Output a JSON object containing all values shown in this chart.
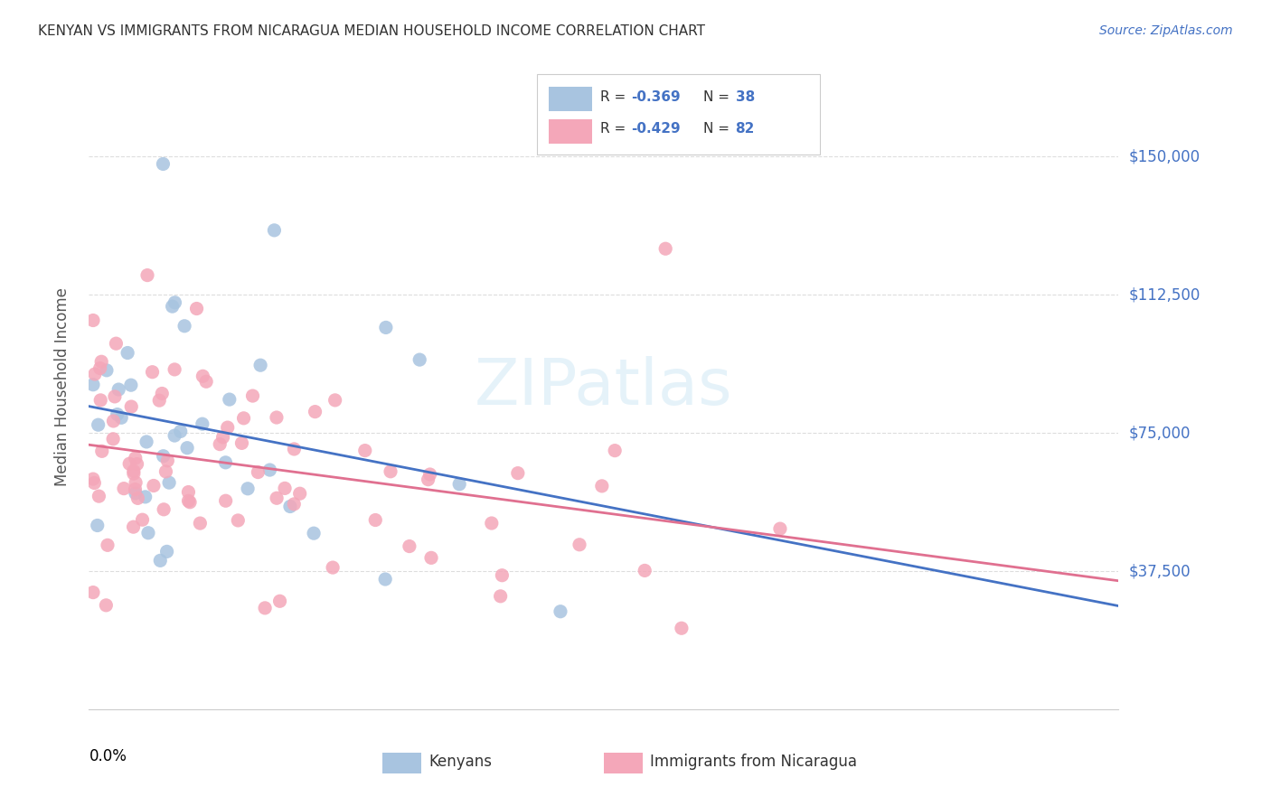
{
  "title": "KENYAN VS IMMIGRANTS FROM NICARAGUA MEDIAN HOUSEHOLD INCOME CORRELATION CHART",
  "source": "Source: ZipAtlas.com",
  "ylabel": "Median Household Income",
  "yticks": [
    37500,
    75000,
    112500,
    150000
  ],
  "ytick_labels": [
    "$37,500",
    "$75,000",
    "$112,500",
    "$150,000"
  ],
  "kenyan_color": "#a8c4e0",
  "nicaragua_color": "#f4a7b9",
  "kenyan_line_color": "#4472c4",
  "nicaragua_line_color": "#e07090",
  "background_color": "#ffffff",
  "grid_color": "#dddddd",
  "source_color": "#4472c4",
  "xlim": [
    0.0,
    0.25
  ],
  "ylim": [
    0,
    175000
  ],
  "kenyan_R": -0.369,
  "kenyan_N": 38,
  "nicaragua_R": -0.429,
  "nicaragua_N": 82
}
